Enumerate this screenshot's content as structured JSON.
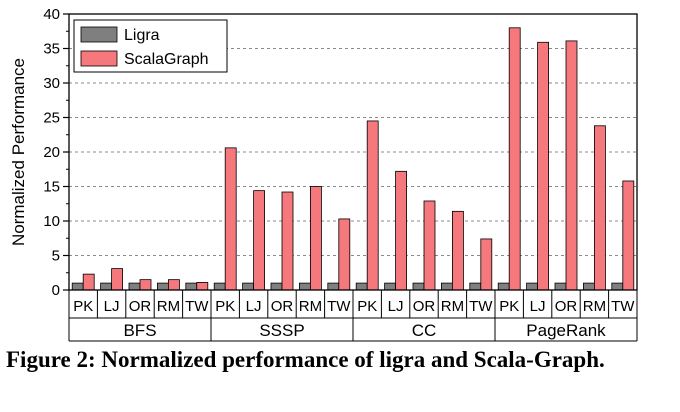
{
  "chart_data": {
    "type": "bar",
    "ylabel": "Normalized Performance",
    "xlabel": "",
    "ylim": [
      0,
      40
    ],
    "yticks": [
      0,
      5,
      10,
      15,
      20,
      25,
      30,
      35,
      40
    ],
    "grid": true,
    "legend_position": "top-left",
    "groups": [
      {
        "label": "BFS",
        "categories": [
          "PK",
          "LJ",
          "OR",
          "RM",
          "TW"
        ]
      },
      {
        "label": "SSSP",
        "categories": [
          "PK",
          "LJ",
          "OR",
          "RM",
          "TW"
        ]
      },
      {
        "label": "CC",
        "categories": [
          "PK",
          "LJ",
          "OR",
          "RM",
          "TW"
        ]
      },
      {
        "label": "PageRank",
        "categories": [
          "PK",
          "LJ",
          "OR",
          "RM",
          "TW"
        ]
      }
    ],
    "series": [
      {
        "name": "Ligra",
        "color": "#7f7f7f",
        "values": [
          1,
          1,
          1,
          1,
          1,
          1,
          1,
          1,
          1,
          1,
          1,
          1,
          1,
          1,
          1,
          1,
          1,
          1,
          1,
          1
        ]
      },
      {
        "name": "ScalaGraph",
        "color": "#f4787c",
        "values": [
          2.3,
          3.1,
          1.5,
          1.5,
          1.1,
          20.6,
          14.4,
          14.2,
          15.0,
          10.3,
          24.5,
          17.2,
          12.9,
          11.4,
          7.4,
          38.0,
          35.9,
          36.1,
          23.8,
          15.8
        ]
      }
    ]
  },
  "caption": "Figure 2: Normalized performance of ligra and Scala-Graph."
}
